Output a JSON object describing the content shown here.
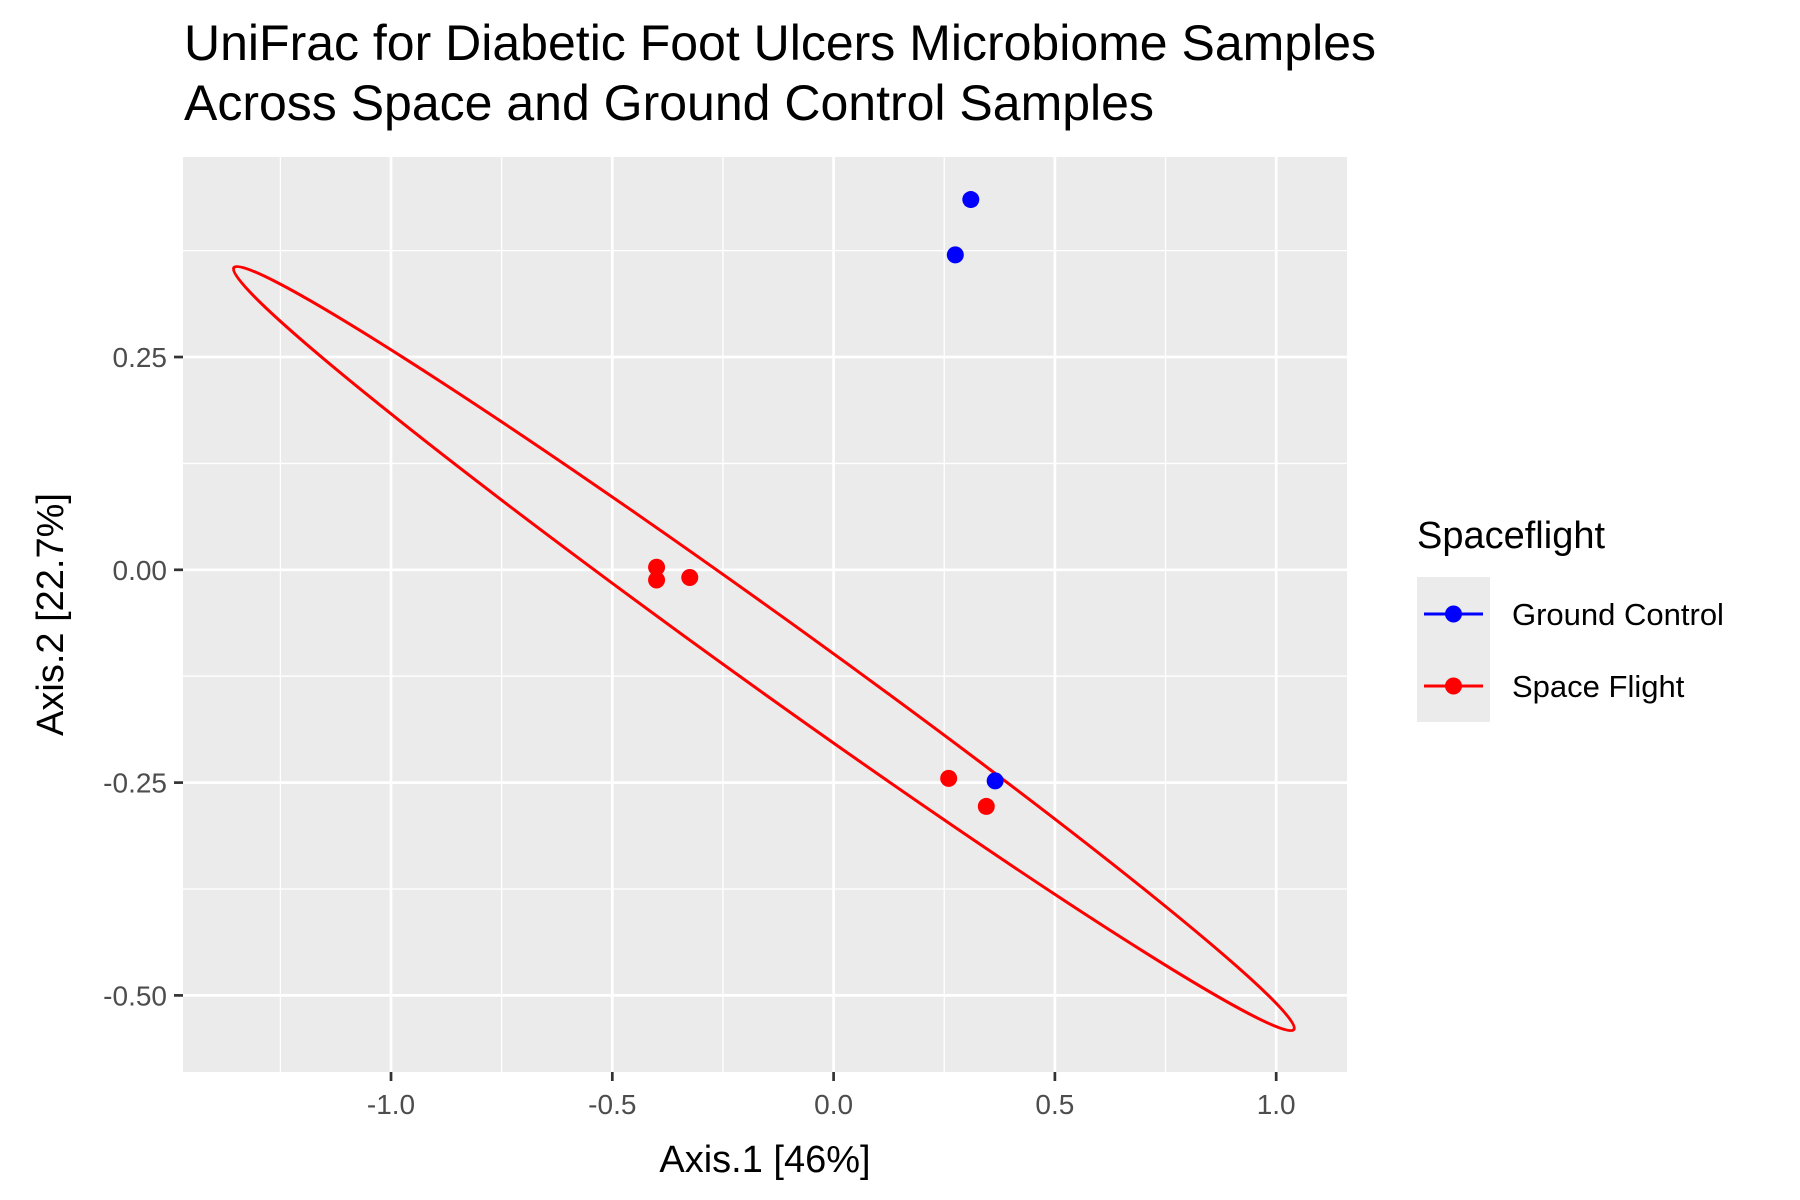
{
  "chart_data": {
    "type": "scatter",
    "title_lines": [
      "UniFrac for Diabetic Foot Ulcers Microbiome Samples",
      "Across Space and Ground Control Samples"
    ],
    "xlabel": "Axis.1   [46%]",
    "ylabel": "Axis.2   [22.7%]",
    "xlim": [
      -1.47,
      1.16
    ],
    "ylim": [
      -0.59,
      0.485
    ],
    "x_ticks": [
      -1.0,
      -0.5,
      0.0,
      0.5,
      1.0
    ],
    "x_tick_labels": [
      "-1.0",
      "-0.5",
      "0.0",
      "0.5",
      "1.0"
    ],
    "x_minor_ticks": [
      -1.25,
      -0.75,
      -0.25,
      0.25,
      0.75
    ],
    "y_ticks": [
      0.25,
      0.0,
      -0.25,
      -0.5
    ],
    "y_tick_labels": [
      "0.25",
      "0.00",
      "-0.25",
      "-0.50"
    ],
    "y_minor_ticks": [
      0.375,
      0.125,
      -0.125,
      -0.375
    ],
    "grid": true,
    "legend": {
      "title": "Spaceflight",
      "placement": "right"
    },
    "series": [
      {
        "name": "Ground Control",
        "color": "#0000ff",
        "points": [
          {
            "x": 0.31,
            "y": 0.435
          },
          {
            "x": 0.275,
            "y": 0.37
          },
          {
            "x": 0.365,
            "y": -0.248
          }
        ]
      },
      {
        "name": "Space Flight",
        "color": "#ff0000",
        "points": [
          {
            "x": -0.4,
            "y": 0.003
          },
          {
            "x": -0.4,
            "y": -0.012
          },
          {
            "x": -0.325,
            "y": -0.009
          },
          {
            "x": 0.26,
            "y": -0.245
          },
          {
            "x": 0.345,
            "y": -0.278
          }
        ]
      }
    ],
    "ellipse": {
      "series": "Space Flight",
      "color": "#ff0000",
      "endpoint_a": {
        "x": -1.355,
        "y": 0.355
      },
      "endpoint_b": {
        "x": 1.04,
        "y": -0.54
      },
      "minor_half_width": 0.043
    }
  }
}
